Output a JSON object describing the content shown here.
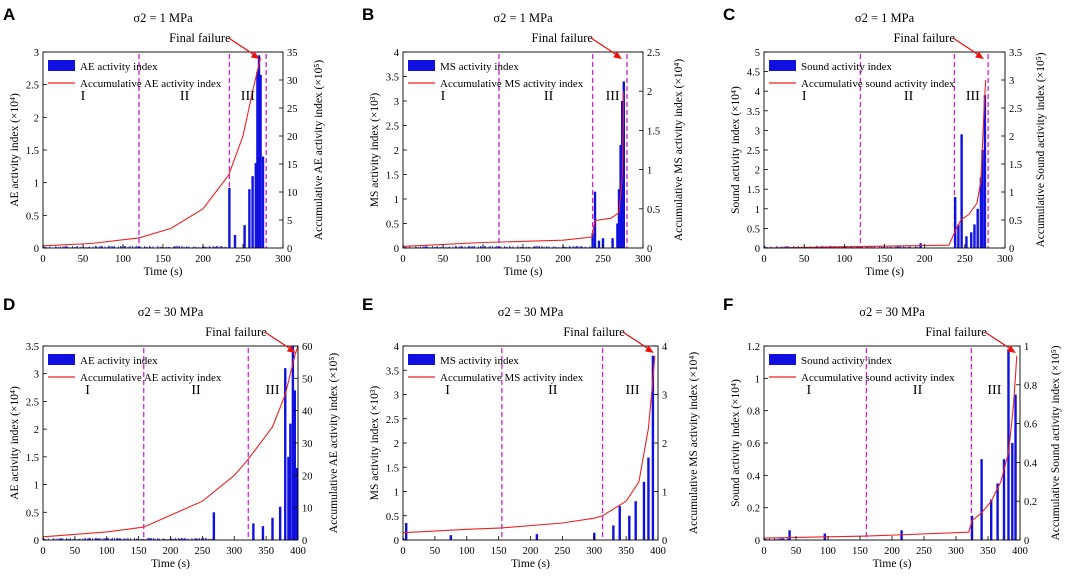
{
  "figure": {
    "colors": {
      "bar": "#1010e0",
      "curve": "#ee2222",
      "stage_line": "#d81fd8",
      "arrow": "#ee1111",
      "axis": "#000000"
    }
  },
  "chart_data": [
    {
      "panel": "A",
      "type": "bar",
      "title": "σ2 = 1 MPa",
      "xlabel": "Time (s)",
      "ylabel": "AE activity index (×10⁴)",
      "y2label": "Accumulative AE activity index (×10⁵)",
      "xlim": [
        0,
        300
      ],
      "ylim": [
        0,
        3
      ],
      "y2lim": [
        0,
        35
      ],
      "xticks": [
        0,
        50,
        100,
        150,
        200,
        250,
        300
      ],
      "yticks": [
        0,
        0.5,
        1,
        1.5,
        2,
        2.5,
        3
      ],
      "y2ticks": [
        0,
        5,
        10,
        15,
        20,
        25,
        30,
        35
      ],
      "stage_boundaries": [
        120,
        233,
        279
      ],
      "stages": [
        "I",
        "II",
        "III"
      ],
      "stage_x": [
        50,
        177,
        256
      ],
      "annotation": "Final failure",
      "failure_time": 272,
      "legend": [
        "AE activity index",
        "Accumulative AE activity index"
      ],
      "spikes": [
        [
          233,
          0.92
        ],
        [
          240,
          0.2
        ],
        [
          252,
          0.35
        ],
        [
          258,
          0.9
        ],
        [
          262,
          1.1
        ],
        [
          266,
          1.3
        ],
        [
          268,
          2.7
        ],
        [
          270,
          2.95
        ],
        [
          272,
          2.65
        ],
        [
          275,
          1.4
        ]
      ],
      "cumulative": [
        [
          0,
          0.4
        ],
        [
          60,
          0.8
        ],
        [
          120,
          1.8
        ],
        [
          160,
          3.5
        ],
        [
          200,
          7
        ],
        [
          232,
          13
        ],
        [
          250,
          20
        ],
        [
          262,
          28
        ],
        [
          272,
          34
        ]
      ]
    },
    {
      "panel": "B",
      "type": "bar",
      "title": "σ2 = 1 MPa",
      "xlabel": "Time (s)",
      "ylabel": "MS activity index (×10³)",
      "y2label": "Accumulative MS activity index (×10⁴)",
      "xlim": [
        0,
        300
      ],
      "ylim": [
        0,
        4
      ],
      "y2lim": [
        0,
        2.5
      ],
      "xticks": [
        0,
        50,
        100,
        150,
        200,
        250,
        300
      ],
      "yticks": [
        0,
        0.5,
        1,
        1.5,
        2,
        2.5,
        3,
        3.5,
        4
      ],
      "y2ticks": [
        0,
        0.5,
        1,
        1.5,
        2,
        2.5
      ],
      "stage_boundaries": [
        120,
        237,
        280
      ],
      "stages": [
        "I",
        "II",
        "III"
      ],
      "stage_x": [
        50,
        182,
        262
      ],
      "annotation": "Final failure",
      "failure_time": 275,
      "legend": [
        "MS activity index",
        "Accumulative MS activity index"
      ],
      "spikes": [
        [
          237,
          0.3
        ],
        [
          240,
          1.15
        ],
        [
          245,
          0.15
        ],
        [
          250,
          0.2
        ],
        [
          262,
          0.2
        ],
        [
          268,
          0.5
        ],
        [
          270,
          1.2
        ],
        [
          272,
          2.1
        ],
        [
          274,
          3.0
        ],
        [
          276,
          3.4
        ]
      ],
      "cumulative": [
        [
          0,
          0.02
        ],
        [
          100,
          0.07
        ],
        [
          200,
          0.1
        ],
        [
          236,
          0.14
        ],
        [
          240,
          0.35
        ],
        [
          260,
          0.38
        ],
        [
          270,
          0.45
        ],
        [
          274,
          0.9
        ],
        [
          276,
          2.0
        ]
      ]
    },
    {
      "panel": "C",
      "type": "bar",
      "title": "σ2 = 1 MPa",
      "xlabel": "Time (s)",
      "ylabel": "Sound activity index (×10⁴)",
      "y2label": "Accumulative Sound activity index (×10⁵)",
      "xlim": [
        0,
        300
      ],
      "ylim": [
        0,
        5
      ],
      "y2lim": [
        0,
        3.5
      ],
      "xticks": [
        0,
        50,
        100,
        150,
        200,
        250,
        300
      ],
      "yticks": [
        0,
        0.5,
        1,
        1.5,
        2,
        2.5,
        3,
        3.5,
        4,
        4.5,
        5
      ],
      "y2ticks": [
        0,
        0.5,
        1,
        1.5,
        2,
        2.5,
        3,
        3.5
      ],
      "stage_boundaries": [
        120,
        237,
        279
      ],
      "stages": [
        "I",
        "II",
        "III"
      ],
      "stage_x": [
        50,
        180,
        260
      ],
      "annotation": "Final failure",
      "failure_time": 275,
      "legend": [
        "Sound activity index",
        "Accumulative sound activity index"
      ],
      "spikes": [
        [
          195,
          0.12
        ],
        [
          238,
          1.3
        ],
        [
          242,
          0.6
        ],
        [
          246,
          2.9
        ],
        [
          252,
          0.3
        ],
        [
          258,
          0.4
        ],
        [
          262,
          0.6
        ],
        [
          266,
          1.0
        ],
        [
          270,
          1.8
        ],
        [
          272,
          2.5
        ],
        [
          275,
          3.9
        ]
      ],
      "cumulative": [
        [
          0,
          0
        ],
        [
          230,
          0.05
        ],
        [
          238,
          0.3
        ],
        [
          245,
          0.5
        ],
        [
          255,
          0.6
        ],
        [
          265,
          0.8
        ],
        [
          270,
          1.2
        ],
        [
          274,
          2.5
        ],
        [
          276,
          3.0
        ]
      ]
    },
    {
      "panel": "D",
      "type": "bar",
      "title": "σ2 = 30 MPa",
      "xlabel": "Time (s)",
      "ylabel": "AE activity index (×10⁴)",
      "y2label": "Accumulative AE activity index (×10⁵)",
      "xlim": [
        0,
        400
      ],
      "ylim": [
        0,
        3.5
      ],
      "y2lim": [
        0,
        60
      ],
      "xticks": [
        0,
        50,
        100,
        150,
        200,
        250,
        300,
        350,
        400
      ],
      "yticks": [
        0,
        0.5,
        1,
        1.5,
        2,
        2.5,
        3,
        3.5
      ],
      "y2ticks": [
        0,
        10,
        20,
        30,
        40,
        50,
        60
      ],
      "stage_boundaries": [
        158,
        322
      ],
      "stages": [
        "I",
        "II",
        "III"
      ],
      "stage_x": [
        70,
        240,
        360
      ],
      "annotation": "Final failure",
      "failure_time": 398,
      "legend": [
        "AE activity index",
        "Accumulative AE activity index"
      ],
      "spikes": [
        [
          268,
          0.5
        ],
        [
          330,
          0.3
        ],
        [
          345,
          0.25
        ],
        [
          360,
          0.4
        ],
        [
          372,
          0.6
        ],
        [
          380,
          3.1
        ],
        [
          385,
          1.5
        ],
        [
          388,
          2.1
        ],
        [
          392,
          3.5
        ],
        [
          395,
          2.7
        ],
        [
          398,
          1.3
        ]
      ],
      "cumulative": [
        [
          0,
          1
        ],
        [
          100,
          2.5
        ],
        [
          158,
          4
        ],
        [
          250,
          12
        ],
        [
          300,
          20
        ],
        [
          322,
          25
        ],
        [
          360,
          35
        ],
        [
          380,
          45
        ],
        [
          395,
          57
        ],
        [
          400,
          60
        ]
      ]
    },
    {
      "panel": "E",
      "type": "bar",
      "title": "σ2 = 30 MPa",
      "xlabel": "Time (s)",
      "ylabel": "MS activity index (×10³)",
      "y2label": "Accumulative MS activity index (×10⁴)",
      "xlim": [
        0,
        400
      ],
      "ylim": [
        0,
        4
      ],
      "y2lim": [
        0,
        4
      ],
      "xticks": [
        0,
        50,
        100,
        150,
        200,
        250,
        300,
        350,
        400
      ],
      "yticks": [
        0,
        0.5,
        1,
        1.5,
        2,
        2.5,
        3,
        3.5,
        4
      ],
      "y2ticks": [
        0,
        1,
        2,
        3,
        4
      ],
      "stage_boundaries": [
        155,
        313
      ],
      "stages": [
        "I",
        "II",
        "III"
      ],
      "stage_x": [
        70,
        235,
        360
      ],
      "annotation": "Final failure",
      "failure_time": 395,
      "legend": [
        "MS activity index",
        "Accumulative MS activity index"
      ],
      "spikes": [
        [
          5,
          0.35
        ],
        [
          75,
          0.1
        ],
        [
          210,
          0.12
        ],
        [
          300,
          0.15
        ],
        [
          330,
          0.3
        ],
        [
          340,
          0.7
        ],
        [
          355,
          0.5
        ],
        [
          365,
          0.8
        ],
        [
          378,
          1.2
        ],
        [
          385,
          1.7
        ],
        [
          392,
          3.8
        ]
      ],
      "cumulative": [
        [
          0,
          0.15
        ],
        [
          100,
          0.22
        ],
        [
          155,
          0.25
        ],
        [
          250,
          0.35
        ],
        [
          300,
          0.45
        ],
        [
          313,
          0.5
        ],
        [
          350,
          0.8
        ],
        [
          370,
          1.2
        ],
        [
          385,
          2.3
        ],
        [
          392,
          3.3
        ],
        [
          395,
          3.8
        ]
      ]
    },
    {
      "panel": "F",
      "type": "bar",
      "title": "σ2 = 30 MPa",
      "xlabel": "Time (s)",
      "ylabel": "Sound activity index (×10⁴)",
      "y2label": "Accumulative Sound activity index (×10⁵)",
      "xlim": [
        0,
        400
      ],
      "ylim": [
        0,
        1.2
      ],
      "y2lim": [
        0,
        1
      ],
      "xticks": [
        0,
        50,
        100,
        150,
        200,
        250,
        300,
        350,
        400
      ],
      "yticks": [
        0,
        0.2,
        0.4,
        0.6,
        0.8,
        1,
        1.2
      ],
      "y2ticks": [
        0,
        0.2,
        0.4,
        0.6,
        0.8,
        1
      ],
      "stage_boundaries": [
        160,
        324
      ],
      "stages": [
        "I",
        "II",
        "III"
      ],
      "stage_x": [
        70,
        240,
        360
      ],
      "annotation": "Final failure",
      "failure_time": 395,
      "legend": [
        "Sound activity index",
        "Accumulative sound activity index"
      ],
      "spikes": [
        [
          40,
          0.06
        ],
        [
          95,
          0.04
        ],
        [
          215,
          0.06
        ],
        [
          325,
          0.15
        ],
        [
          340,
          0.5
        ],
        [
          355,
          0.25
        ],
        [
          365,
          0.35
        ],
        [
          375,
          0.5
        ],
        [
          382,
          1.18
        ],
        [
          388,
          0.6
        ],
        [
          393,
          0.9
        ]
      ],
      "cumulative": [
        [
          0,
          0.01
        ],
        [
          160,
          0.02
        ],
        [
          320,
          0.04
        ],
        [
          325,
          0.1
        ],
        [
          340,
          0.14
        ],
        [
          355,
          0.2
        ],
        [
          370,
          0.3
        ],
        [
          382,
          0.45
        ],
        [
          390,
          0.7
        ],
        [
          395,
          0.95
        ]
      ]
    }
  ]
}
